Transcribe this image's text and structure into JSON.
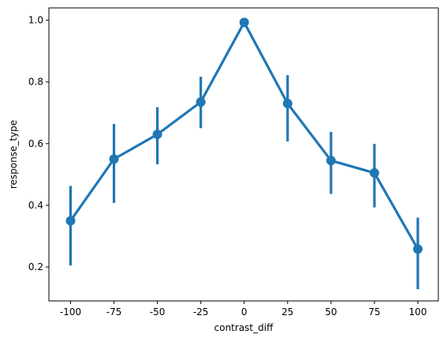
{
  "chart_data": {
    "type": "line",
    "style": "point-plot-with-error-bars",
    "xlabel": "contrast_diff",
    "ylabel": "response_type",
    "x_categories": [
      "-100",
      "-75",
      "-50",
      "-25",
      "0",
      "25",
      "50",
      "75",
      "100"
    ],
    "ylim": [
      0.09,
      1.04
    ],
    "yticks": [
      0.2,
      0.4,
      0.6,
      0.8,
      1.0
    ],
    "ytick_labels": [
      "0.2",
      "0.4",
      "0.6",
      "0.8",
      "1.0"
    ],
    "grid": false,
    "series": [
      {
        "color": "#1f77b4",
        "values": [
          0.35,
          0.55,
          0.63,
          0.735,
          0.993,
          0.73,
          0.545,
          0.505,
          0.258
        ],
        "error_low": [
          0.205,
          0.408,
          0.533,
          0.65,
          0.985,
          0.607,
          0.437,
          0.393,
          0.128
        ],
        "error_high": [
          0.463,
          0.664,
          0.718,
          0.817,
          1.0,
          0.822,
          0.638,
          0.599,
          0.36
        ]
      }
    ]
  }
}
